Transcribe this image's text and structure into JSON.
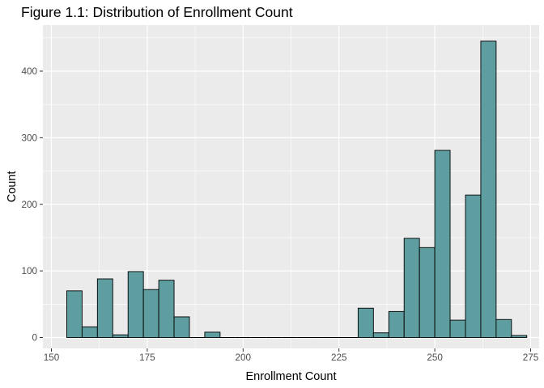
{
  "chart_data": {
    "type": "bar",
    "title": "Figure 1.1: Distribution of Enrollment Count",
    "xlabel": "Enrollment Count",
    "ylabel": "Count",
    "xlim": [
      150,
      275
    ],
    "ylim": [
      0,
      450
    ],
    "xticks": [
      150,
      175,
      200,
      225,
      250,
      275
    ],
    "yticks": [
      0,
      100,
      200,
      300,
      400
    ],
    "grid": true,
    "bar_color": "#5f9ea0",
    "bar_border": "#000000",
    "panel_background": "#ebebeb",
    "grid_color": "#ffffff",
    "bin_width": 4,
    "bins": [
      {
        "start": 154,
        "end": 158,
        "count": 70
      },
      {
        "start": 158,
        "end": 162,
        "count": 16
      },
      {
        "start": 162,
        "end": 166,
        "count": 88
      },
      {
        "start": 166,
        "end": 170,
        "count": 4
      },
      {
        "start": 170,
        "end": 174,
        "count": 99
      },
      {
        "start": 174,
        "end": 178,
        "count": 72
      },
      {
        "start": 178,
        "end": 182,
        "count": 86
      },
      {
        "start": 182,
        "end": 186,
        "count": 31
      },
      {
        "start": 186,
        "end": 190,
        "count": 0
      },
      {
        "start": 190,
        "end": 194,
        "count": 8
      },
      {
        "start": 194,
        "end": 198,
        "count": 0
      },
      {
        "start": 198,
        "end": 202,
        "count": 0
      },
      {
        "start": 202,
        "end": 206,
        "count": 0
      },
      {
        "start": 206,
        "end": 210,
        "count": 0
      },
      {
        "start": 210,
        "end": 214,
        "count": 0
      },
      {
        "start": 214,
        "end": 218,
        "count": 0
      },
      {
        "start": 218,
        "end": 222,
        "count": 0
      },
      {
        "start": 222,
        "end": 226,
        "count": 0
      },
      {
        "start": 226,
        "end": 230,
        "count": 0
      },
      {
        "start": 230,
        "end": 234,
        "count": 44
      },
      {
        "start": 234,
        "end": 238,
        "count": 7
      },
      {
        "start": 238,
        "end": 242,
        "count": 39
      },
      {
        "start": 242,
        "end": 246,
        "count": 149
      },
      {
        "start": 246,
        "end": 250,
        "count": 135
      },
      {
        "start": 250,
        "end": 254,
        "count": 281
      },
      {
        "start": 254,
        "end": 258,
        "count": 26
      },
      {
        "start": 258,
        "end": 262,
        "count": 214
      },
      {
        "start": 262,
        "end": 266,
        "count": 445
      },
      {
        "start": 266,
        "end": 270,
        "count": 27
      },
      {
        "start": 270,
        "end": 274,
        "count": 3
      }
    ]
  }
}
